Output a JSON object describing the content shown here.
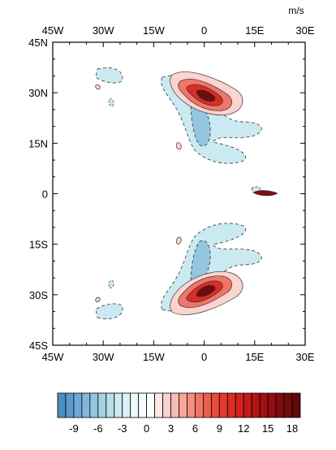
{
  "chart_data": {
    "type": "contour",
    "units": "m/s",
    "x_axis": {
      "range": [
        -45,
        30
      ],
      "ticks": [
        -45,
        -30,
        -15,
        0,
        15,
        30
      ],
      "tick_labels": [
        "45W",
        "30W",
        "15W",
        "0",
        "15E",
        "30E"
      ]
    },
    "y_axis": {
      "range": [
        -45,
        45
      ],
      "ticks": [
        45,
        30,
        15,
        0,
        -15,
        -30,
        -45
      ],
      "tick_labels": [
        "45N",
        "30N",
        "15N",
        "0",
        "15S",
        "30S",
        "45S"
      ]
    },
    "colorbar": {
      "levels": [
        -11,
        -10,
        -9,
        -8,
        -7,
        -6,
        -5,
        -4,
        -3,
        -2,
        -1,
        0,
        1,
        2,
        3,
        4,
        5,
        6,
        7,
        8,
        9,
        10,
        11,
        12,
        13,
        14,
        15,
        16,
        17,
        18,
        19,
        20
      ],
      "labels": [
        "-9",
        "-6",
        "-3",
        "0",
        "3",
        "6",
        "9",
        "12",
        "15",
        "18"
      ],
      "label_values": [
        -9,
        -6,
        -3,
        0,
        3,
        6,
        9,
        12,
        15,
        18
      ],
      "colors": [
        "#4a8ec2",
        "#5b9bcc",
        "#6ea9d4",
        "#80b8da",
        "#93c6df",
        "#a6d3e4",
        "#b8dfea",
        "#cbe9f0",
        "#dcf1f5",
        "#ecf8fa",
        "#f8fcfd",
        "#ffffff",
        "#fde8e6",
        "#fbd3cf",
        "#f8bcb6",
        "#f5a59c",
        "#f28e82",
        "#ef7668",
        "#ec5e50",
        "#e84a3c",
        "#e23a2e",
        "#d92e24",
        "#cf231c",
        "#c21a16",
        "#b31413",
        "#a31011",
        "#920e10",
        "#810c0f",
        "#700b0e",
        "#5e0a0c"
      ]
    },
    "grid": false
  }
}
